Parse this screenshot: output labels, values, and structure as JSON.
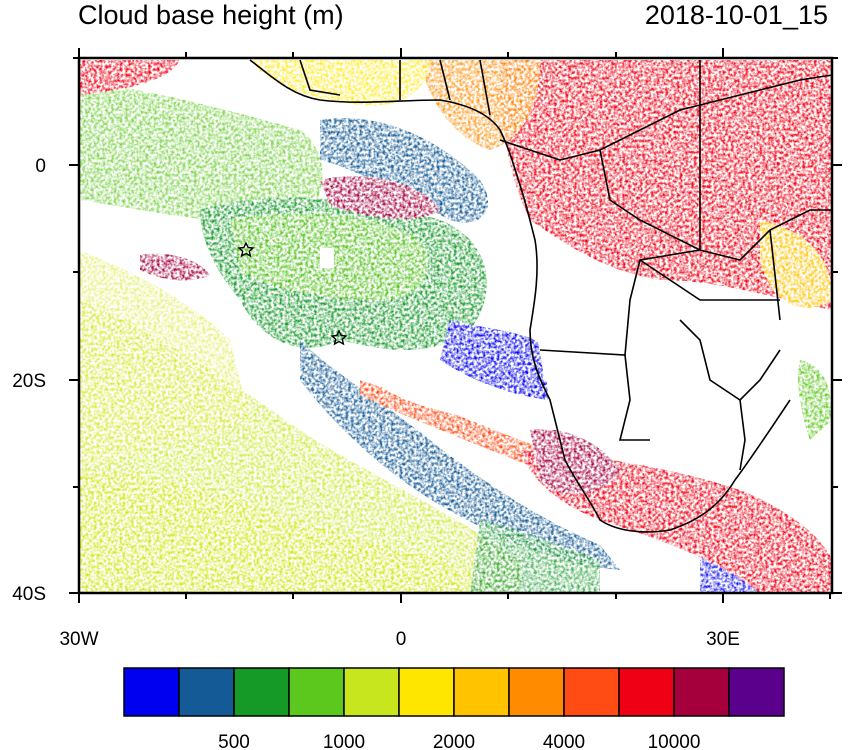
{
  "map": {
    "title": "Cloud base height (m)",
    "timestamp": "2018-10-01_15",
    "lat_labels": [
      "0",
      "20S",
      "40S"
    ],
    "lon_labels": [
      "30W",
      "0",
      "30E"
    ],
    "colorbar": {
      "colors": [
        "#0000f0",
        "#145a96",
        "#159a28",
        "#5cc81e",
        "#c8e61e",
        "#ffe600",
        "#ffc300",
        "#ff8c00",
        "#ff4b14",
        "#f00014",
        "#a5003c",
        "#5a008c"
      ],
      "labels": [
        "500",
        "1000",
        "2000",
        "4000",
        "10000"
      ]
    },
    "markers": [
      "star",
      "star"
    ]
  }
}
